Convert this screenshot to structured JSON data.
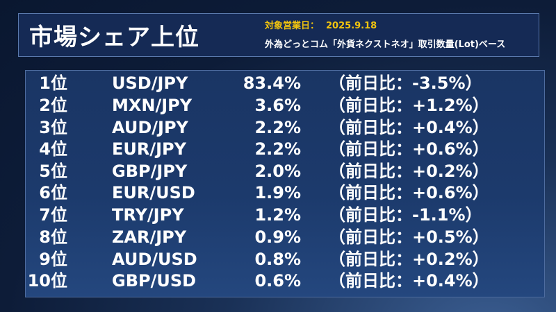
{
  "header": {
    "title": "市場シェア上位",
    "date_label": "対象営業日：",
    "date_value": "2025.9.18",
    "description": "外為どっとコム「外貨ネクストネオ」取引数量(Lot)ベース"
  },
  "colors": {
    "accent": "#f2c40e",
    "header_bg": "#152a55",
    "panel_bg": "#1c3a6c",
    "text": "#ffffff"
  },
  "rankings": [
    {
      "rank": "1位",
      "pair": "USD/JPY",
      "share": "83.4%",
      "change": "（前日比：-3.5%）"
    },
    {
      "rank": "2位",
      "pair": "MXN/JPY",
      "share": "3.6%",
      "change": "（前日比：+1.2%）"
    },
    {
      "rank": "3位",
      "pair": "AUD/JPY",
      "share": "2.2%",
      "change": "（前日比：+0.4%）"
    },
    {
      "rank": "4位",
      "pair": "EUR/JPY",
      "share": "2.2%",
      "change": "（前日比：+0.6%）"
    },
    {
      "rank": "5位",
      "pair": "GBP/JPY",
      "share": "2.0%",
      "change": "（前日比：+0.2%）"
    },
    {
      "rank": "6位",
      "pair": "EUR/USD",
      "share": "1.9%",
      "change": "（前日比：+0.6%）"
    },
    {
      "rank": "7位",
      "pair": "TRY/JPY",
      "share": "1.2%",
      "change": "（前日比：-1.1%）"
    },
    {
      "rank": "8位",
      "pair": "ZAR/JPY",
      "share": "0.9%",
      "change": "（前日比：+0.5%）"
    },
    {
      "rank": "9位",
      "pair": "AUD/USD",
      "share": "0.8%",
      "change": "（前日比：+0.2%）"
    },
    {
      "rank": "10位",
      "pair": "GBP/USD",
      "share": "0.6%",
      "change": "（前日比：+0.4%）"
    }
  ]
}
